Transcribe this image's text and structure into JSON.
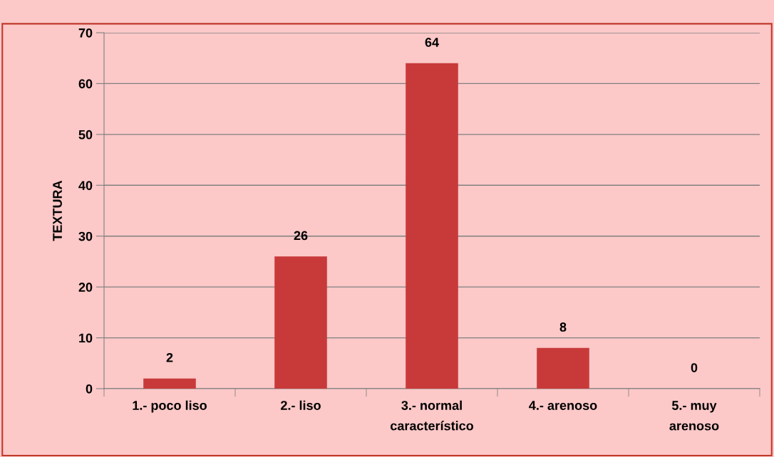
{
  "chart_data": {
    "type": "bar",
    "ylabel": "TEXTURA",
    "categories": [
      "1.- poco liso",
      "2.- liso",
      "3.- normal\ncaracterístico",
      "4.- arenoso",
      "5.- muy\narenoso"
    ],
    "values": [
      2,
      26,
      64,
      8,
      0
    ],
    "color": "#c83a3a",
    "ylim": [
      0,
      70
    ],
    "yticks": [
      0,
      10,
      20,
      30,
      40,
      50,
      60,
      70
    ],
    "grid": "y",
    "data_labels": true
  }
}
